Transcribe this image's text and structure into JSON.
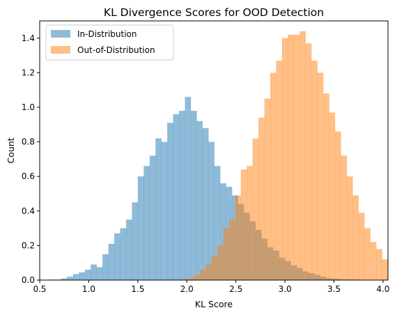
{
  "chart_data": {
    "type": "histogram",
    "title": "KL Divergence Scores for OOD Detection",
    "xlabel": "KL Score",
    "ylabel": "Count",
    "xlim": [
      0.5,
      4.05
    ],
    "ylim": [
      0,
      1.5
    ],
    "xticks": [
      "0.5",
      "1.0",
      "1.5",
      "2.0",
      "2.5",
      "3.0",
      "3.5",
      "4.0"
    ],
    "yticks": [
      "0.0",
      "0.2",
      "0.4",
      "0.6",
      "0.8",
      "1.0",
      "1.2",
      "1.4"
    ],
    "grid": false,
    "legend_position": "top-left",
    "series": [
      {
        "name": "In-Distribution",
        "color": "#1f77b4",
        "opacity": 0.5,
        "bins": [
          [
            0.6,
            0.66,
            0.003
          ],
          [
            0.66,
            0.72,
            0.003
          ],
          [
            0.72,
            0.78,
            0.01
          ],
          [
            0.78,
            0.84,
            0.02
          ],
          [
            0.84,
            0.9,
            0.035
          ],
          [
            0.9,
            0.96,
            0.045
          ],
          [
            0.96,
            1.02,
            0.06
          ],
          [
            1.02,
            1.08,
            0.09
          ],
          [
            1.08,
            1.14,
            0.075
          ],
          [
            1.14,
            1.2,
            0.15
          ],
          [
            1.2,
            1.26,
            0.21
          ],
          [
            1.26,
            1.32,
            0.27
          ],
          [
            1.32,
            1.38,
            0.3
          ],
          [
            1.38,
            1.44,
            0.35
          ],
          [
            1.44,
            1.5,
            0.45
          ],
          [
            1.5,
            1.56,
            0.6
          ],
          [
            1.56,
            1.62,
            0.66
          ],
          [
            1.62,
            1.68,
            0.72
          ],
          [
            1.68,
            1.74,
            0.82
          ],
          [
            1.74,
            1.8,
            0.8
          ],
          [
            1.8,
            1.86,
            0.91
          ],
          [
            1.86,
            1.92,
            0.96
          ],
          [
            1.92,
            1.98,
            0.98
          ],
          [
            1.98,
            2.04,
            1.06
          ],
          [
            2.04,
            2.1,
            0.98
          ],
          [
            2.1,
            2.16,
            0.92
          ],
          [
            2.16,
            2.22,
            0.88
          ],
          [
            2.22,
            2.28,
            0.8
          ],
          [
            2.28,
            2.34,
            0.66
          ],
          [
            2.34,
            2.4,
            0.56
          ],
          [
            2.4,
            2.46,
            0.54
          ],
          [
            2.46,
            2.52,
            0.49
          ],
          [
            2.52,
            2.58,
            0.44
          ],
          [
            2.58,
            2.64,
            0.39
          ],
          [
            2.64,
            2.7,
            0.34
          ],
          [
            2.7,
            2.76,
            0.29
          ],
          [
            2.76,
            2.82,
            0.24
          ],
          [
            2.82,
            2.88,
            0.19
          ],
          [
            2.88,
            2.94,
            0.17
          ],
          [
            2.94,
            3.0,
            0.13
          ],
          [
            3.0,
            3.06,
            0.11
          ],
          [
            3.06,
            3.12,
            0.085
          ],
          [
            3.12,
            3.18,
            0.07
          ],
          [
            3.18,
            3.24,
            0.05
          ],
          [
            3.24,
            3.3,
            0.04
          ],
          [
            3.3,
            3.36,
            0.03
          ],
          [
            3.36,
            3.42,
            0.02
          ],
          [
            3.42,
            3.48,
            0.012
          ],
          [
            3.48,
            3.54,
            0.008
          ],
          [
            3.54,
            3.6,
            0.005
          ],
          [
            3.6,
            3.66,
            0.004
          ],
          [
            3.66,
            3.72,
            0.003
          ],
          [
            3.72,
            3.78,
            0.002
          ],
          [
            3.78,
            3.84,
            0.002
          ],
          [
            3.84,
            3.9,
            0.002
          ]
        ]
      },
      {
        "name": "Out-of-Distribution",
        "color": "#ff7f0e",
        "opacity": 0.5,
        "bins": [
          [
            1.95,
            2.01,
            0.005
          ],
          [
            2.01,
            2.07,
            0.01
          ],
          [
            2.07,
            2.13,
            0.03
          ],
          [
            2.13,
            2.19,
            0.06
          ],
          [
            2.19,
            2.25,
            0.09
          ],
          [
            2.25,
            2.31,
            0.14
          ],
          [
            2.31,
            2.37,
            0.2
          ],
          [
            2.37,
            2.43,
            0.3
          ],
          [
            2.43,
            2.49,
            0.35
          ],
          [
            2.49,
            2.55,
            0.49
          ],
          [
            2.55,
            2.61,
            0.64
          ],
          [
            2.61,
            2.67,
            0.66
          ],
          [
            2.67,
            2.73,
            0.82
          ],
          [
            2.73,
            2.79,
            0.94
          ],
          [
            2.79,
            2.85,
            1.05
          ],
          [
            2.85,
            2.91,
            1.2
          ],
          [
            2.91,
            2.97,
            1.27
          ],
          [
            2.97,
            3.03,
            1.4
          ],
          [
            3.03,
            3.09,
            1.42
          ],
          [
            3.09,
            3.15,
            1.42
          ],
          [
            3.15,
            3.21,
            1.44
          ],
          [
            3.21,
            3.27,
            1.37
          ],
          [
            3.27,
            3.33,
            1.27
          ],
          [
            3.33,
            3.39,
            1.2
          ],
          [
            3.39,
            3.45,
            1.08
          ],
          [
            3.45,
            3.51,
            0.97
          ],
          [
            3.51,
            3.57,
            0.86
          ],
          [
            3.57,
            3.63,
            0.72
          ],
          [
            3.63,
            3.69,
            0.6
          ],
          [
            3.69,
            3.75,
            0.49
          ],
          [
            3.75,
            3.81,
            0.39
          ],
          [
            3.81,
            3.87,
            0.3
          ],
          [
            3.87,
            3.93,
            0.22
          ],
          [
            3.93,
            3.99,
            0.18
          ],
          [
            3.99,
            4.05,
            0.12
          ]
        ]
      }
    ]
  }
}
